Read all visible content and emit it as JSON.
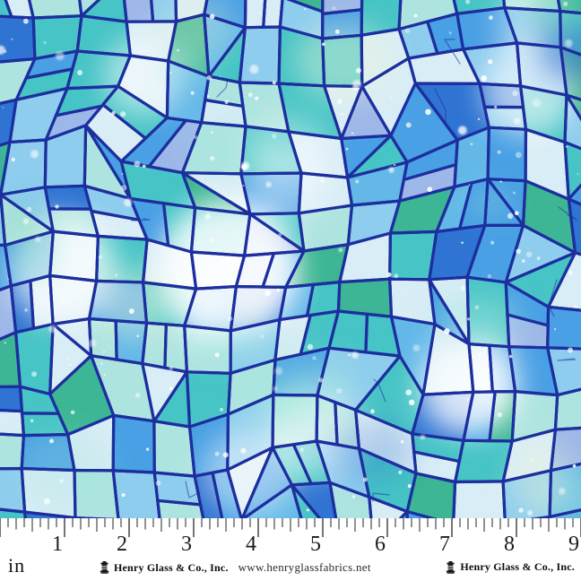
{
  "fabric": {
    "name": "blue-watercolor-mosaic-print",
    "palette": [
      {
        "color": "#49a0e4",
        "weight": 18
      },
      {
        "color": "#2f74d2",
        "weight": 9
      },
      {
        "color": "#8ecdee",
        "weight": 14
      },
      {
        "color": "#d9edf6",
        "weight": 14
      },
      {
        "color": "#47c4c6",
        "weight": 15
      },
      {
        "color": "#3cb694",
        "weight": 6
      },
      {
        "color": "#aee4e0",
        "weight": 11
      },
      {
        "color": "#9db8e8",
        "weight": 5
      },
      {
        "color": "#63b8e8",
        "weight": 8
      }
    ],
    "wash_colors": [
      "#ffffff",
      "#eaf6da",
      "#37c29a",
      "#1f66cc",
      "#9fe8dc",
      "#ffffff"
    ],
    "outline_color": "#1d2f9e",
    "speckle_color": "#ffffff"
  },
  "ruler": {
    "unit_label": "in",
    "numbers": [
      "1",
      "2",
      "3",
      "4",
      "5",
      "6",
      "7",
      "8",
      "9"
    ],
    "ticks_per_inch": 8,
    "inches_shown": 9,
    "tick_color": "#929292",
    "inch_tick_color": "#757575",
    "number_color": "#1b1b1b"
  },
  "footer": {
    "brand_center": "Henry Glass & Co., Inc.",
    "website": "www.henryglassfabrics.net",
    "brand_right": "Henry Glass & Co., Inc."
  }
}
